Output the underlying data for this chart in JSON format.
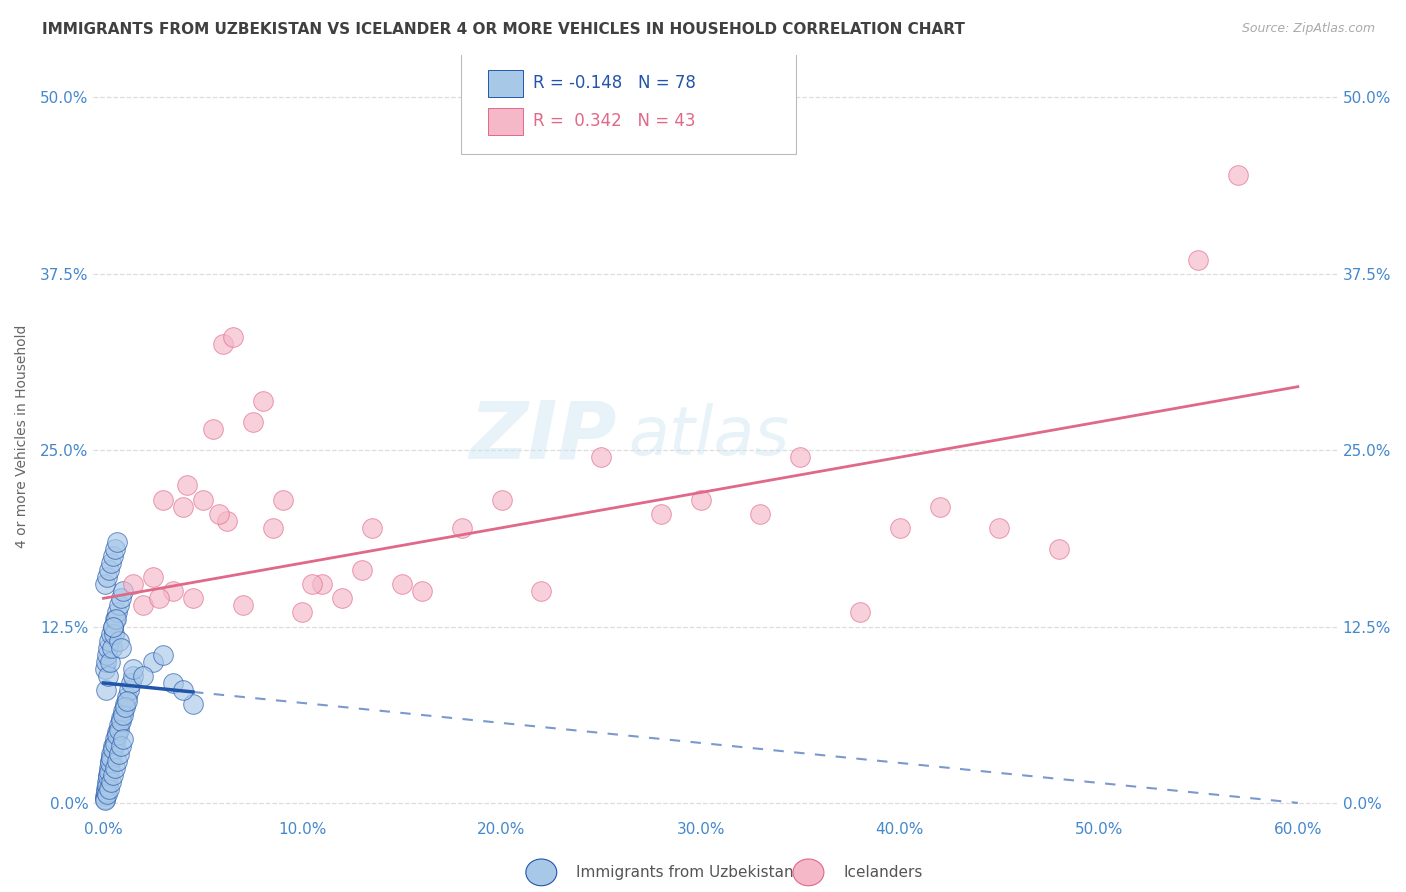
{
  "title": "IMMIGRANTS FROM UZBEKISTAN VS ICELANDER 4 OR MORE VEHICLES IN HOUSEHOLD CORRELATION CHART",
  "source": "Source: ZipAtlas.com",
  "ylabel": "4 or more Vehicles in Household",
  "xlabel_vals": [
    0.0,
    10.0,
    20.0,
    30.0,
    40.0,
    50.0,
    60.0
  ],
  "ylabel_vals": [
    0.0,
    12.5,
    25.0,
    37.5,
    50.0
  ],
  "xlim": [
    -0.5,
    62.0
  ],
  "ylim": [
    -1.0,
    53.0
  ],
  "legend_label1": "Immigrants from Uzbekistan",
  "legend_label2": "Icelanders",
  "r1": "-0.148",
  "n1": "78",
  "r2": "0.342",
  "n2": "43",
  "color1": "#a8c8e8",
  "color2": "#f4b8c8",
  "line1_color": "#2255aa",
  "line2_color": "#e06888",
  "watermark_zip": "ZIP",
  "watermark_atlas": "atlas",
  "background_color": "#ffffff",
  "grid_color": "#dddddd",
  "title_color": "#404040",
  "axis_label_color": "#4488cc",
  "uzbek_x": [
    0.1,
    0.15,
    0.2,
    0.25,
    0.3,
    0.35,
    0.4,
    0.5,
    0.6,
    0.7,
    0.8,
    0.9,
    1.0,
    1.1,
    1.2,
    1.3,
    1.4,
    1.5,
    0.1,
    0.15,
    0.2,
    0.25,
    0.3,
    0.35,
    0.4,
    0.5,
    0.6,
    0.7,
    0.8,
    0.9,
    1.0,
    1.1,
    1.2,
    0.1,
    0.15,
    0.2,
    0.25,
    0.3,
    0.4,
    0.5,
    0.6,
    0.7,
    0.8,
    0.9,
    1.0,
    0.1,
    0.2,
    0.3,
    0.4,
    0.5,
    0.6,
    0.7,
    0.8,
    0.9,
    1.0,
    0.1,
    0.2,
    0.3,
    0.4,
    0.5,
    0.6,
    0.7,
    0.15,
    0.25,
    0.35,
    0.45,
    0.55,
    0.65,
    2.5,
    3.5,
    4.5,
    0.8,
    1.5,
    2.0,
    3.0,
    4.0,
    0.5,
    0.9
  ],
  "uzbek_y": [
    0.5,
    1.0,
    1.5,
    2.0,
    2.5,
    3.0,
    3.5,
    4.0,
    4.5,
    5.0,
    5.5,
    6.0,
    6.5,
    7.0,
    7.5,
    8.0,
    8.5,
    9.0,
    0.3,
    0.8,
    1.2,
    1.8,
    2.2,
    2.8,
    3.2,
    3.8,
    4.2,
    4.8,
    5.2,
    5.8,
    6.2,
    6.8,
    7.2,
    9.5,
    10.0,
    10.5,
    11.0,
    11.5,
    12.0,
    12.5,
    13.0,
    13.5,
    14.0,
    14.5,
    15.0,
    0.2,
    0.6,
    1.0,
    1.5,
    2.0,
    2.5,
    3.0,
    3.5,
    4.0,
    4.5,
    15.5,
    16.0,
    16.5,
    17.0,
    17.5,
    18.0,
    18.5,
    8.0,
    9.0,
    10.0,
    11.0,
    12.0,
    13.0,
    10.0,
    8.5,
    7.0,
    11.5,
    9.5,
    9.0,
    10.5,
    8.0,
    12.5,
    11.0
  ],
  "iceland_x": [
    1.5,
    2.0,
    2.5,
    3.0,
    3.5,
    4.0,
    4.5,
    5.0,
    5.5,
    6.0,
    6.5,
    7.0,
    7.5,
    8.0,
    9.0,
    10.0,
    11.0,
    12.0,
    13.0,
    15.0,
    18.0,
    20.0,
    22.0,
    25.0,
    28.0,
    30.0,
    33.0,
    35.0,
    38.0,
    40.0,
    42.0,
    45.0,
    48.0,
    55.0,
    57.0,
    2.8,
    4.2,
    6.2,
    8.5,
    10.5,
    13.5,
    16.0,
    5.8
  ],
  "iceland_y": [
    15.5,
    14.0,
    16.0,
    21.5,
    15.0,
    21.0,
    14.5,
    21.5,
    26.5,
    32.5,
    33.0,
    14.0,
    27.0,
    28.5,
    21.5,
    13.5,
    15.5,
    14.5,
    16.5,
    15.5,
    19.5,
    21.5,
    15.0,
    24.5,
    20.5,
    21.5,
    20.5,
    24.5,
    13.5,
    19.5,
    21.0,
    19.5,
    18.0,
    38.5,
    44.5,
    14.5,
    22.5,
    20.0,
    19.5,
    15.5,
    19.5,
    15.0,
    20.5
  ],
  "uz_trendline_x0": 0.0,
  "uz_trendline_x1": 60.0,
  "uz_trendline_y0": 8.5,
  "uz_trendline_y1": 0.0,
  "ic_trendline_x0": 0.0,
  "ic_trendline_x1": 60.0,
  "ic_trendline_y0": 14.5,
  "ic_trendline_y1": 29.5
}
